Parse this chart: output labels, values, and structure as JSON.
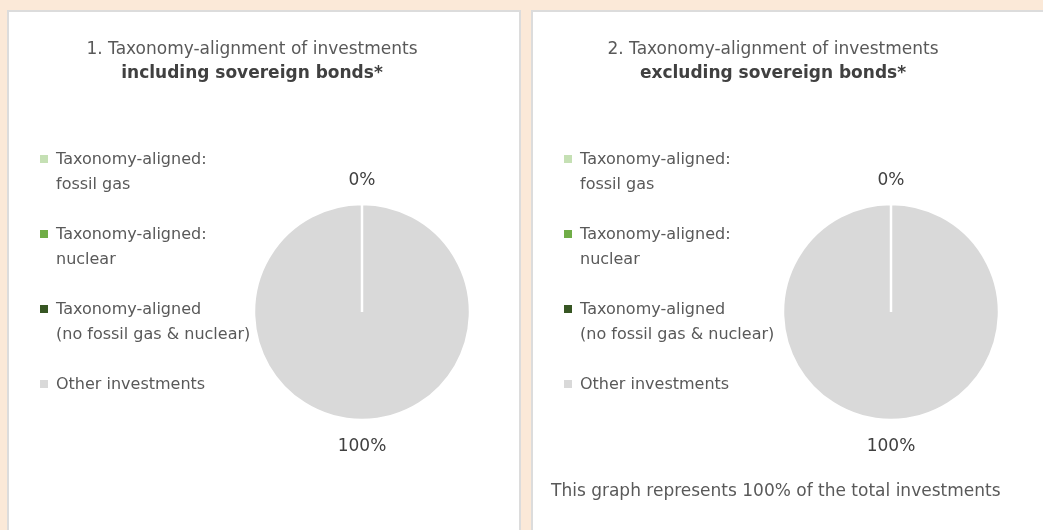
{
  "chart_data": [
    {
      "type": "pie",
      "title": "1. Taxonomy-alignment of investments",
      "subtitle": "including sovereign bonds*",
      "categories": [
        "Taxonomy-aligned: fossil gas",
        "Taxonomy-aligned: nuclear",
        "Taxonomy-aligned (no fossil gas & nuclear)",
        "Other investments"
      ],
      "values": [
        0,
        0,
        0,
        100
      ],
      "colors": [
        "#c5e0b4",
        "#70ad47",
        "#375623",
        "#d9d9d9"
      ],
      "value_labels": [
        "0%",
        null,
        null,
        "100%"
      ],
      "legend": "left"
    },
    {
      "type": "pie",
      "title": "2. Taxonomy-alignment of investments",
      "subtitle": "excluding sovereign bonds*",
      "categories": [
        "Taxonomy-aligned: fossil gas",
        "Taxonomy-aligned: nuclear",
        "Taxonomy-aligned (no fossil gas & nuclear)",
        "Other investments"
      ],
      "values": [
        0,
        0,
        0,
        100
      ],
      "colors": [
        "#c5e0b4",
        "#70ad47",
        "#375623",
        "#d9d9d9"
      ],
      "value_labels": [
        "0%",
        null,
        null,
        "100%"
      ],
      "legend": "left",
      "annotations": [
        "This graph represents 100% of the total investments"
      ]
    }
  ]
}
